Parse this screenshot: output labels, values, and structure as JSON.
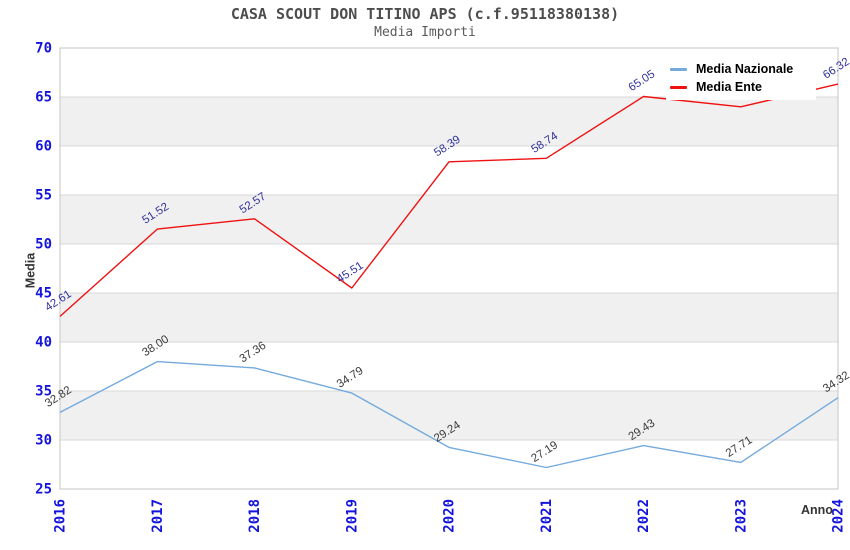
{
  "header": {
    "title": "CASA SCOUT DON TITINO APS (c.f.95118380138)",
    "subtitle": "Media Importi"
  },
  "chart_data": {
    "type": "line",
    "x": [
      "2016",
      "2017",
      "2018",
      "2019",
      "2020",
      "2021",
      "2022",
      "2023",
      "2024"
    ],
    "xlabel": "Anno",
    "ylabel": "Media",
    "ylim": [
      25,
      70
    ],
    "ytick_step": 5,
    "yticks": [
      "25",
      "30",
      "35",
      "40",
      "45",
      "50",
      "55",
      "60",
      "65",
      "70"
    ],
    "grid": "horizontal-bands",
    "legend_position": "top-right",
    "series": [
      {
        "name": "Media Nazionale",
        "color": "#74aadc",
        "label_color": "#3b3b3b",
        "values": [
          32.82,
          38.0,
          37.36,
          34.79,
          29.24,
          27.19,
          29.43,
          27.71,
          34.32
        ],
        "point_labels": [
          "32.82",
          "38.00",
          "37.36",
          "34.79",
          "29.24",
          "27.19",
          "29.43",
          "27.71",
          "34.32"
        ]
      },
      {
        "name": "Media Ente",
        "color": "#f01111",
        "label_color": "#32329b",
        "values": [
          42.61,
          51.52,
          52.57,
          45.51,
          58.39,
          58.74,
          65.05,
          64.0,
          66.32
        ],
        "point_labels": [
          "42.61",
          "51.52",
          "52.57",
          "45.51",
          "58.39",
          "58.74",
          "65.05",
          "",
          "66.32"
        ]
      }
    ],
    "colors": {
      "tick_label": "#1414dd",
      "band_even": "#ffffff",
      "band_odd": "#f0f0f0",
      "gridline": "#d8d8d8",
      "spine": "#c6c6c6"
    }
  }
}
